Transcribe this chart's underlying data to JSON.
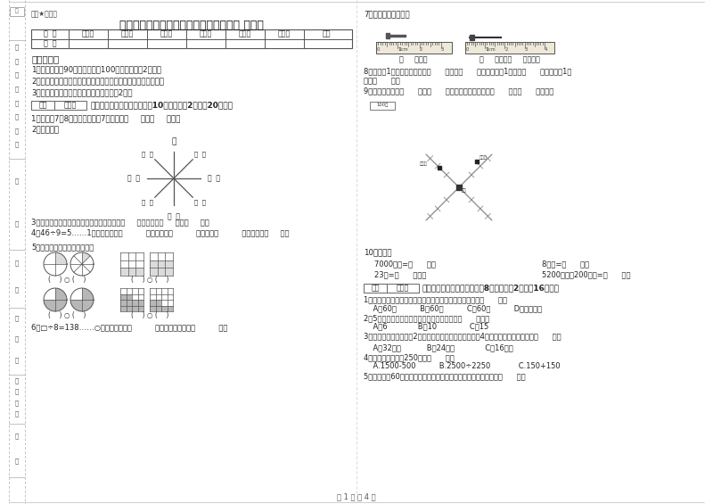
{
  "title": "宁夏实验小学三年级数学下学期月考试卷 含答案",
  "subtitle": "题密★自用题",
  "bg_color": "#ffffff",
  "text_color": "#222222",
  "page_label": "第 1 页 共 4 页",
  "table_headers": [
    "题  号",
    "填空题",
    "选择题",
    "判断题",
    "计算题",
    "综合题",
    "应用题",
    "总分"
  ],
  "table_row_label": "得  分",
  "exam_notes_title": "考试须知：",
  "exam_notes": [
    "1、考试时间：90分钟，满分为100分（含卷面分2分）。",
    "2、请首先按要求在试卷的指定位置填写您的姓名、班级、学号。",
    "3、不要在试卷上乱写乱画，卷面不整洁扣2分。"
  ],
  "section1_header": "一、用心思考，正确填空（共10小题，每题2分，共20分）。",
  "q1": "1、时针在7和8之间，分针指向7，这时是（     ）时（     ）分。",
  "q2": "2、填一填。",
  "q3": "3、在进位加法中，不管哪一位上的数相加满（     ），都要向（     ）进（     ）。",
  "q4a": "4、46÷9=5……1中，被除数是（          ），除数是（          ），商是（          ），余数是（     ）。",
  "q5": "5、看图写分数，并比较大小。",
  "q6": "6、□÷8=138……○，余数最大填（          ），这时被除数是（          ）。",
  "q7_label": "7、量出钉子的长度。",
  "q7_blank1": "（     ）毫米",
  "q7_blank2": "（     ）厘米（     ）毫米。",
  "q8": "8、分针走1小格，秒针正好走（      ），是（      ）秒。分针走1大格是（      ），时针走1大",
  "q8b": "格是（      ）。",
  "q9": "9、小红家在学校（      ）方（      ）米处；小明家在学校（      ）方（      ）米处。",
  "q10_label": "10、换算。",
  "q10_r1c1": "7000千克=（      ）吨",
  "q10_r1c2": "8千克=（      ）克",
  "q10_r2c1": "23吨=（      ）千克",
  "q10_r2c2": "5200千克－200千克=（      ）吨",
  "section2_header": "二、反复比较，慎重选择（共8小题，每题2分，共16分）。",
  "mc1": "1、时钟从上一个数字到相邻的下一个数字，经过的时间是（      ）。",
  "mc1b": "    A、60秒          B、60分          C、60时          D、无法确定",
  "mc2": "2、5名同学打乒乓球，每两人打一场，共要打（      ）场。",
  "mc2b": "    A、6             B、10              C、15",
  "mc3": "3、一个正方形的边长是2厘米，现在将边长扩大到原来的4倍，现在正方形的周长是（      ）。",
  "mc3b": "    A、32厘米           B、24厘米             C、16厘米",
  "mc4": "4、下面的结果都是250的是（      ）。",
  "mc4b": "    A.1500-500          B.2500÷2250            C.150+150",
  "mc5": "5、把一根长60厘米的铁丝围成一个正方形，这个正方形的面积是（      ）。",
  "side_top": [
    "审",
    "卷",
    "教",
    "师",
    "核",
    "分",
    "签",
    "名"
  ],
  "side_mid1": [
    "班",
    "级"
  ],
  "side_mid2": [
    "内",
    "部"
  ],
  "side_mid3": [
    "学",
    "校",
    "名"
  ],
  "side_bot": [
    "（",
    "新",
    "题",
    "）"
  ],
  "side_bot2": [
    "条",
    "形"
  ]
}
